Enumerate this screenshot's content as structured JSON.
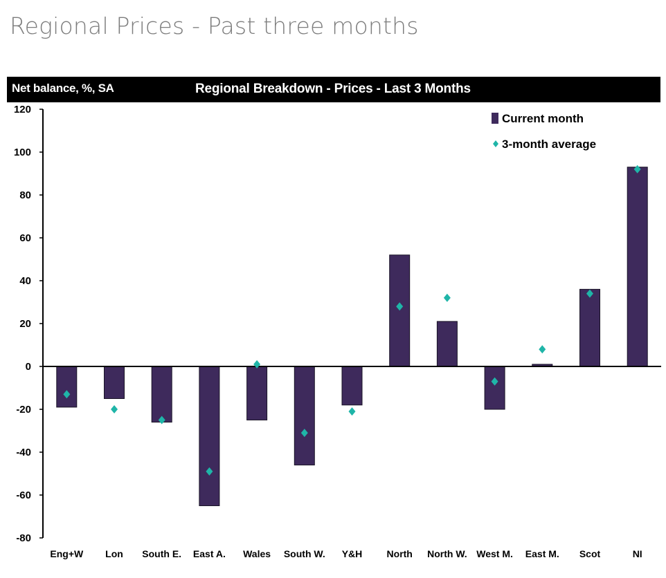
{
  "page": {
    "title": "Regional Prices - Past three months"
  },
  "chart_data": {
    "type": "bar",
    "title": "Regional Breakdown - Prices - Last 3 Months",
    "ylabel": "Net balance, %, SA",
    "xlabel": "",
    "ylim": [
      -80,
      120
    ],
    "yticks": [
      -80,
      -60,
      -40,
      -20,
      0,
      20,
      40,
      60,
      80,
      100,
      120
    ],
    "categories": [
      "Eng+W",
      "Lon",
      "South E.",
      "East A.",
      "Wales",
      "South W.",
      "Y&H",
      "North",
      "North W.",
      "West M.",
      "East M.",
      "Scot",
      "NI"
    ],
    "series": [
      {
        "name": "Current month",
        "kind": "bar",
        "color": "#3e2a5c",
        "values": [
          -19,
          -15,
          -26,
          -65,
          -25,
          -46,
          -18,
          52,
          21,
          -20,
          1,
          36,
          93
        ]
      },
      {
        "name": "3-month average",
        "kind": "marker",
        "color": "#1fb5a8",
        "values": [
          -13,
          -20,
          -25,
          -49,
          1,
          -31,
          -21,
          28,
          32,
          -7,
          8,
          34,
          92
        ]
      }
    ],
    "legend": {
      "position": "top-right"
    },
    "grid": false
  }
}
